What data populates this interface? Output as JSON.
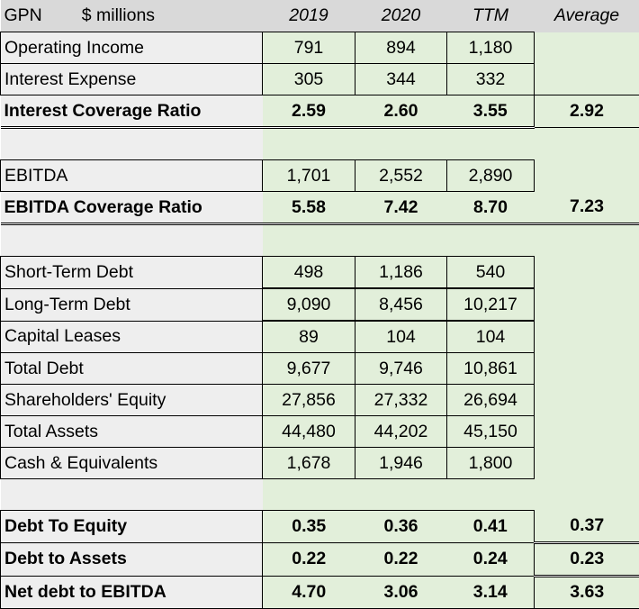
{
  "header": {
    "ticker": "GPN",
    "units": "$ millions",
    "columns": [
      "2019",
      "2020",
      "TTM",
      "Average"
    ]
  },
  "interest_section": [
    {
      "label": "Operating Income",
      "values": [
        "791",
        "894",
        "1,180"
      ],
      "average": ""
    },
    {
      "label": "Interest Expense",
      "values": [
        "305",
        "344",
        "332"
      ],
      "average": ""
    },
    {
      "label": "Interest Coverage Ratio",
      "values": [
        "2.59",
        "2.60",
        "3.55"
      ],
      "average": "2.92",
      "bold": true
    }
  ],
  "ebitda_section": [
    {
      "label": "EBITDA",
      "values": [
        "1,701",
        "2,552",
        "2,890"
      ],
      "average": ""
    },
    {
      "label": "EBITDA Coverage Ratio",
      "values": [
        "5.58",
        "7.42",
        "8.70"
      ],
      "average": "7.23",
      "bold": true
    }
  ],
  "debt_section": [
    {
      "label": "Short-Term Debt",
      "values": [
        "498",
        "1,186",
        "540"
      ]
    },
    {
      "label": "Long-Term Debt",
      "values": [
        "9,090",
        "8,456",
        "10,217"
      ]
    },
    {
      "label": "Capital Leases",
      "values": [
        "89",
        "104",
        "104"
      ]
    },
    {
      "label": "Total Debt",
      "values": [
        "9,677",
        "9,746",
        "10,861"
      ]
    },
    {
      "label": "Shareholders' Equity",
      "values": [
        "27,856",
        "27,332",
        "26,694"
      ]
    },
    {
      "label": "Total Assets",
      "values": [
        "44,480",
        "44,202",
        "45,150"
      ]
    },
    {
      "label": "Cash & Equivalents",
      "values": [
        "1,678",
        "1,946",
        "1,800"
      ]
    }
  ],
  "ratio_section": [
    {
      "label": "Debt To Equity",
      "values": [
        "0.35",
        "0.36",
        "0.41"
      ],
      "average": "0.37",
      "bold": true
    },
    {
      "label": "Debt to Assets",
      "values": [
        "0.22",
        "0.22",
        "0.24"
      ],
      "average": "0.23",
      "bold": true
    },
    {
      "label": "Net debt to EBITDA",
      "values": [
        "4.70",
        "3.06",
        "3.14"
      ],
      "average": "3.63",
      "bold": true
    }
  ],
  "colors": {
    "label_bg": "#eeeeee",
    "data_bg": "#e2efda",
    "header_bg": "#d9d9d9"
  }
}
